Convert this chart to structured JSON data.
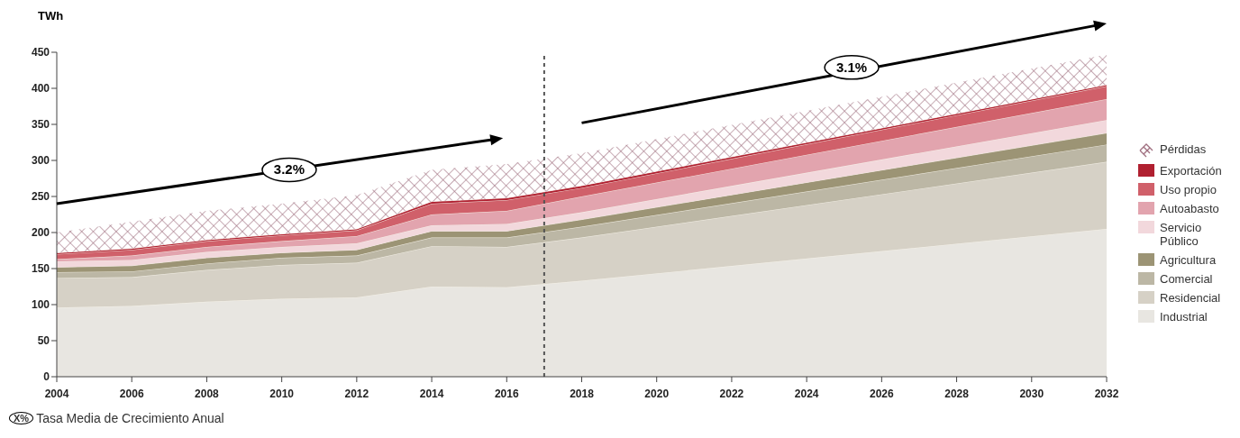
{
  "chart_data": {
    "type": "area",
    "stacked": true,
    "ylabel": "TWh",
    "x": [
      2004,
      2006,
      2008,
      2010,
      2012,
      2014,
      2016,
      2018,
      2032
    ],
    "xlim": [
      2004,
      2032
    ],
    "xticks": [
      2004,
      2006,
      2008,
      2010,
      2012,
      2014,
      2016,
      2018,
      2020,
      2022,
      2024,
      2026,
      2028,
      2030,
      2032
    ],
    "ylim": [
      0,
      450
    ],
    "yticks": [
      0,
      50,
      100,
      150,
      200,
      250,
      300,
      350,
      400,
      450
    ],
    "legend": "right",
    "series": [
      {
        "name": "Industrial",
        "color": "#e8e6e1",
        "values": [
          96,
          98,
          104,
          108,
          110,
          125,
          124,
          133,
          205
        ]
      },
      {
        "name": "Residencial",
        "color": "#d6d1c6",
        "values": [
          41,
          40,
          44,
          47,
          48,
          56,
          56,
          60,
          93
        ]
      },
      {
        "name": "Comercial",
        "color": "#bcb7a5",
        "values": [
          8,
          8,
          9,
          10,
          10,
          12,
          13,
          15,
          24
        ]
      },
      {
        "name": "Agricultura",
        "color": "#9c9475",
        "values": [
          7,
          8,
          8,
          7,
          8,
          9,
          9,
          10,
          16
        ]
      },
      {
        "name": "Servicio Público",
        "color": "#f2d8dc",
        "values": [
          8,
          8,
          8,
          8,
          9,
          8,
          10,
          10,
          18
        ]
      },
      {
        "name": "Autoabasto",
        "color": "#e2a4ae",
        "values": [
          3,
          6,
          7,
          8,
          10,
          15,
          18,
          22,
          29
        ]
      },
      {
        "name": "Uso propio",
        "color": "#d0606a",
        "values": [
          7,
          8,
          8,
          8,
          8,
          15,
          15,
          12,
          18
        ]
      },
      {
        "name": "Exportación",
        "color": "#b02030",
        "values": [
          2,
          2,
          2,
          2,
          2,
          3,
          3,
          3,
          2
        ]
      },
      {
        "name": "Pérdidas",
        "color": "#a07080",
        "values": [
          28,
          37,
          40,
          42,
          47,
          44,
          47,
          45,
          42
        ]
      }
    ],
    "ref_lines": [
      {
        "axis": "x",
        "value": 2017,
        "color": "#555555",
        "line_style": "dashed"
      }
    ],
    "annotations": [
      "3.2%",
      "3.1%",
      "X%",
      "Tasa Media de Crecimiento Anual"
    ]
  }
}
